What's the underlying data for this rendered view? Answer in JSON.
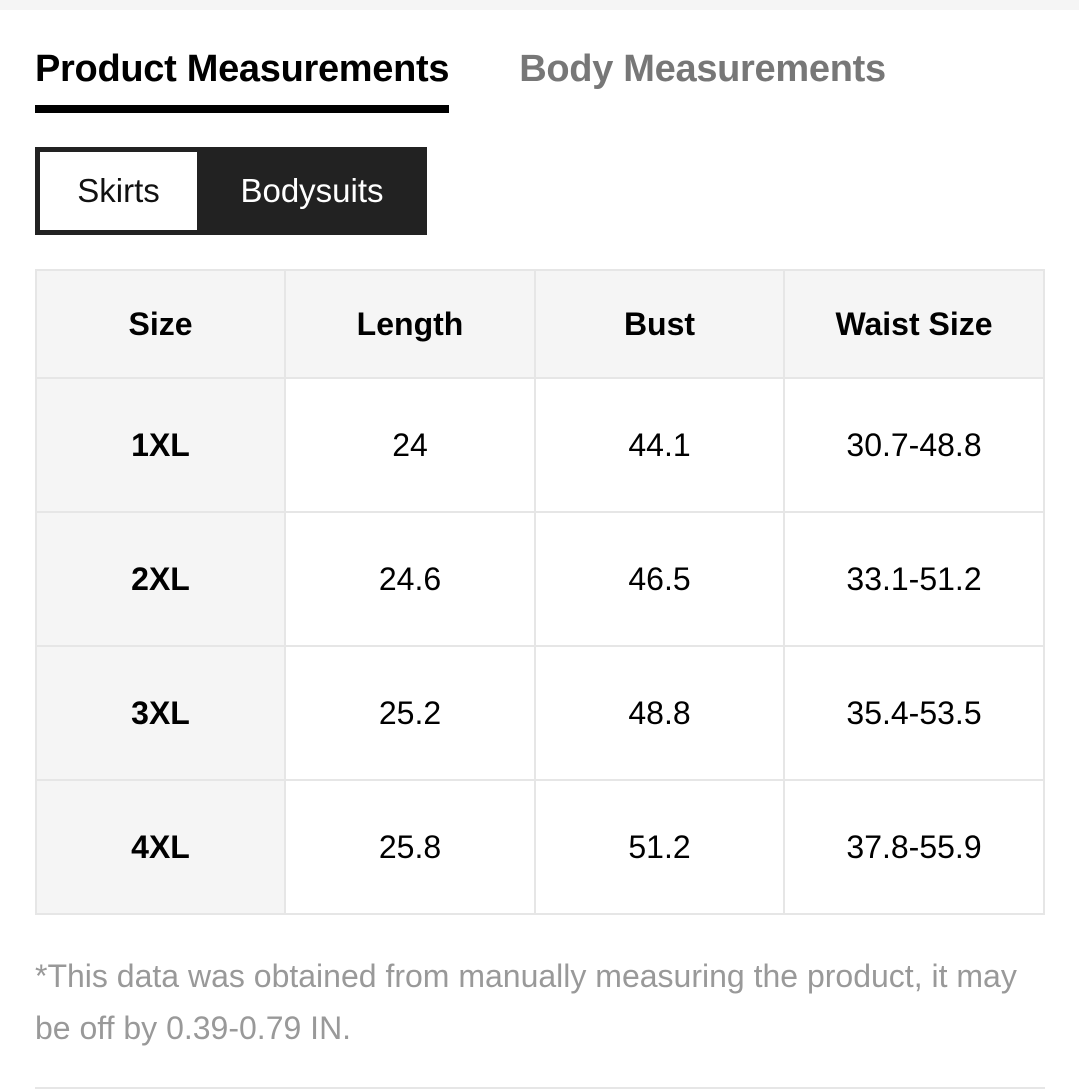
{
  "tabs": [
    {
      "label": "Product Measurements",
      "active": true
    },
    {
      "label": "Body Measurements",
      "active": false
    }
  ],
  "categories": {
    "options": [
      "Skirts",
      "Bodysuits"
    ],
    "selected": "Skirts"
  },
  "table": {
    "headers": [
      "Size",
      "Length",
      "Bust",
      "Waist Size"
    ],
    "rows": [
      [
        "1XL",
        "24",
        "44.1",
        "30.7-48.8"
      ],
      [
        "2XL",
        "24.6",
        "46.5",
        "33.1-51.2"
      ],
      [
        "3XL",
        "25.2",
        "48.8",
        "35.4-53.5"
      ],
      [
        "4XL",
        "25.8",
        "51.2",
        "37.8-55.9"
      ]
    ]
  },
  "note": "*This data was obtained from manually measuring the product, it may be off by 0.39-0.79 IN."
}
